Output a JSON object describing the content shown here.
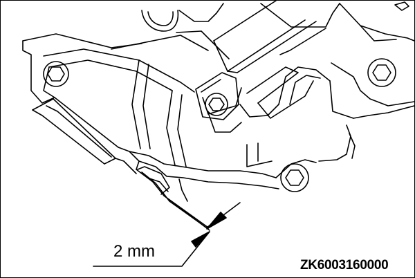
{
  "diagram": {
    "dimension_label": "2 mm",
    "figure_code": "ZK6003160000",
    "line_color": "#000000",
    "background_color": "#ffffff"
  }
}
